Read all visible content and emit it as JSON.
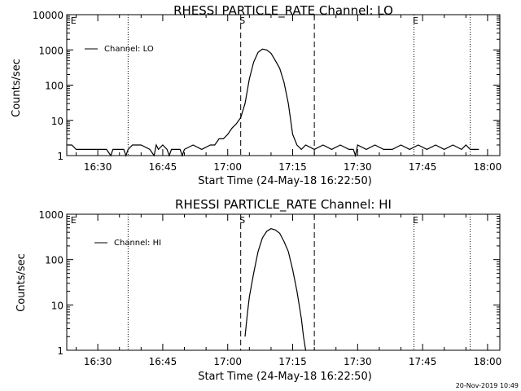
{
  "chart_data": [
    {
      "type": "line",
      "title": "RHESSI PARTICLE_RATE Channel: LO",
      "xlabel": "Start Time (24-May-18 16:22:50)",
      "ylabel": "Counts/sec",
      "yscale": "log",
      "ylim": [
        1,
        10000
      ],
      "yticks": [
        1,
        10,
        100,
        1000,
        10000
      ],
      "ytick_labels": [
        "1",
        "10",
        "100",
        "1000",
        "10000"
      ],
      "xlim": [
        "16:22:50",
        "18:02:50"
      ],
      "xticks": [
        "16:30",
        "16:45",
        "17:00",
        "17:15",
        "17:30",
        "17:45",
        "18:00"
      ],
      "legend": "top-left",
      "series": [
        {
          "name": "Channel: LO",
          "x": [
            "16:23",
            "16:24",
            "16:25",
            "16:26",
            "16:28",
            "16:30",
            "16:32",
            "16:33",
            "16:33:30",
            "16:34",
            "16:35",
            "16:36",
            "16:36:30",
            "16:37",
            "16:38",
            "16:40",
            "16:42",
            "16:43",
            "16:43:30",
            "16:44",
            "16:45",
            "16:46",
            "16:46:30",
            "16:47",
            "16:48",
            "16:49",
            "16:49:30",
            "16:50",
            "16:52",
            "16:54",
            "16:56",
            "16:57",
            "16:58",
            "16:59",
            "17:00",
            "17:01",
            "17:02",
            "17:03",
            "17:04",
            "17:05",
            "17:06",
            "17:07",
            "17:08",
            "17:09",
            "17:10",
            "17:11",
            "17:12",
            "17:13",
            "17:14",
            "17:15",
            "17:16",
            "17:17",
            "17:18",
            "17:20",
            "17:22",
            "17:24",
            "17:26",
            "17:28",
            "17:29",
            "17:29:30",
            "17:30",
            "17:32",
            "17:34",
            "17:36",
            "17:38",
            "17:40",
            "17:42",
            "17:44",
            "17:46",
            "17:48",
            "17:50",
            "17:52",
            "17:54",
            "17:55",
            "17:56",
            "17:57",
            "17:58"
          ],
          "values": [
            2,
            2,
            1.5,
            1.5,
            1.5,
            1.5,
            1.5,
            1,
            1.5,
            1.5,
            1.5,
            1.5,
            1,
            1.5,
            2,
            2,
            1.5,
            1,
            2,
            1.5,
            2,
            1.5,
            1,
            1.5,
            1.5,
            1.5,
            1,
            1.5,
            2,
            1.5,
            2,
            2,
            3,
            3,
            4,
            6,
            8,
            12,
            30,
            150,
            450,
            850,
            1050,
            1000,
            800,
            500,
            300,
            120,
            30,
            4,
            2,
            1.5,
            2,
            1.5,
            2,
            1.5,
            2,
            1.5,
            1.5,
            1,
            2,
            1.5,
            2,
            1.5,
            1.5,
            2,
            1.5,
            2,
            1.5,
            2,
            1.5,
            2,
            1.5,
            2,
            1.5,
            1.5,
            1.5
          ]
        }
      ],
      "annotations": {
        "dashed_vlines": [
          "17:03",
          "17:20"
        ],
        "dotted_vlines": [
          "16:37",
          "17:43",
          "17:56"
        ],
        "markers": [
          {
            "label": "E",
            "at": "16:24"
          },
          {
            "label": "S",
            "at": "17:03"
          },
          {
            "label": "E",
            "at": "17:43"
          }
        ]
      }
    },
    {
      "type": "line",
      "title": "RHESSI PARTICLE_RATE Channel: HI",
      "xlabel": "Start Time (24-May-18 16:22:50)",
      "ylabel": "Counts/sec",
      "yscale": "log",
      "ylim": [
        1,
        1000
      ],
      "yticks": [
        1,
        10,
        100,
        1000
      ],
      "ytick_labels": [
        "1",
        "10",
        "100",
        "1000"
      ],
      "xlim": [
        "16:22:50",
        "18:02:50"
      ],
      "xticks": [
        "16:30",
        "16:45",
        "17:00",
        "17:15",
        "17:30",
        "17:45",
        "18:00"
      ],
      "legend": "top-left",
      "series": [
        {
          "name": "Channel: HI",
          "x": [
            "17:04",
            "17:04:30",
            "17:05",
            "17:06",
            "17:07",
            "17:08",
            "17:09",
            "17:10",
            "17:11",
            "17:12",
            "17:13",
            "17:14",
            "17:15",
            "17:16",
            "17:17",
            "17:17:30",
            "17:18"
          ],
          "values": [
            2,
            6,
            15,
            50,
            150,
            300,
            420,
            480,
            450,
            380,
            250,
            150,
            60,
            20,
            5,
            2,
            1
          ]
        }
      ],
      "annotations": {
        "dashed_vlines": [
          "17:03",
          "17:20"
        ],
        "dotted_vlines": [
          "16:37",
          "17:43",
          "17:56"
        ],
        "markers": [
          {
            "label": "E",
            "at": "16:24"
          },
          {
            "label": "S",
            "at": "17:03"
          },
          {
            "label": "E",
            "at": "17:43"
          }
        ]
      }
    }
  ],
  "footer": {
    "timestamp": "20-Nov-2019 10:49"
  }
}
